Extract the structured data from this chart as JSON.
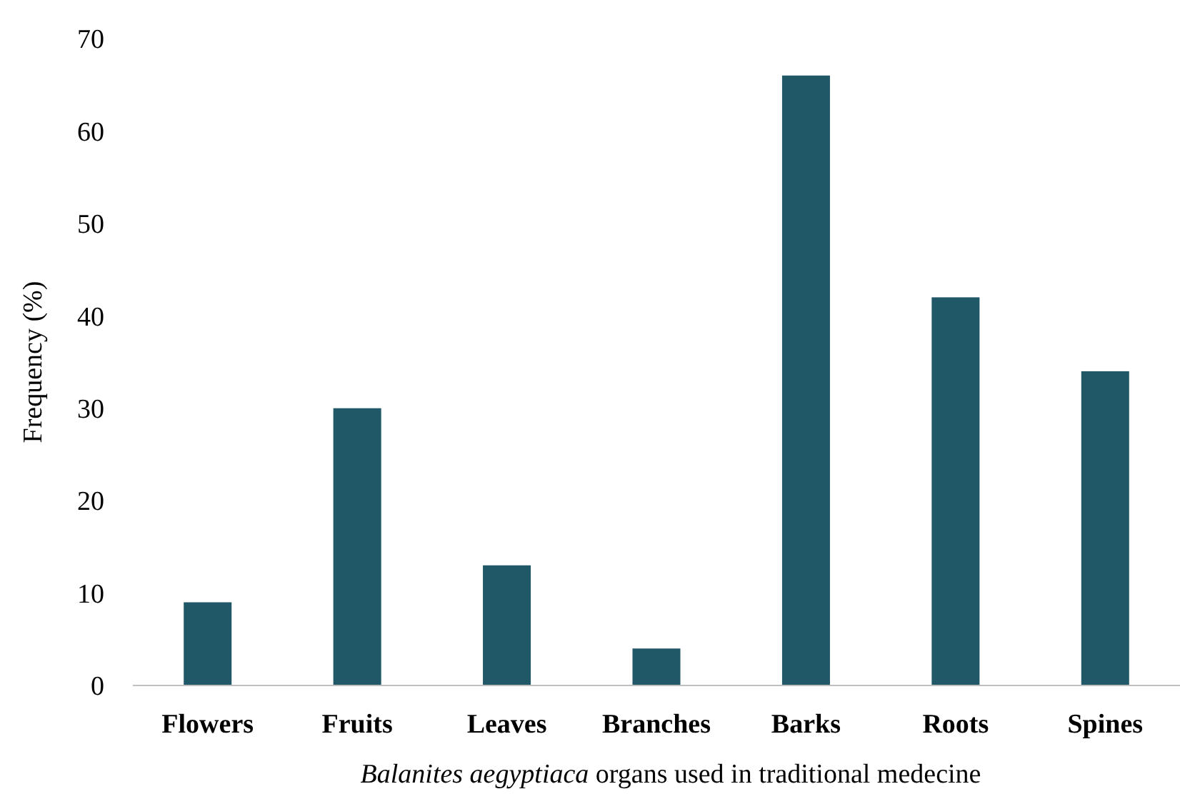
{
  "chart_data": {
    "type": "bar",
    "xlabel": "Balanites aegyptiaca organs used in traditional medecine",
    "ylabel": "Frequency (%)",
    "categories": [
      "Flowers",
      "Fruits",
      "Leaves",
      "Branches",
      "Barks",
      "Roots",
      "Spines"
    ],
    "values": [
      9,
      30,
      13,
      4,
      66,
      42,
      34
    ],
    "color": "#215868",
    "ylim": [
      0,
      70
    ],
    "yticks": [
      0,
      10,
      20,
      30,
      40,
      50,
      60,
      70
    ],
    "grid": false
  }
}
